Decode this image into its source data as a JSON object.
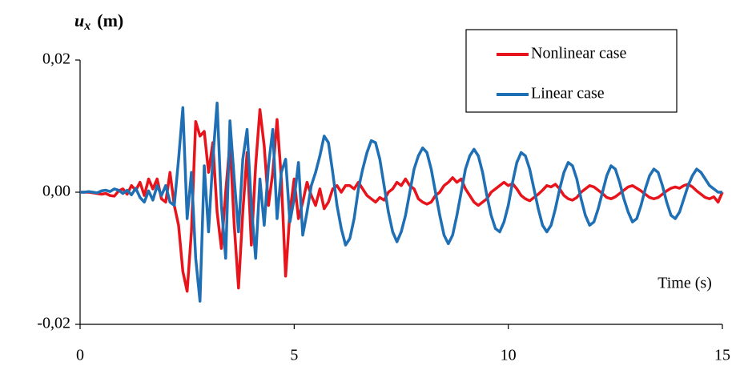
{
  "chart_data": {
    "type": "line",
    "ylabel": {
      "symbol": "u",
      "subscript": "x",
      "unit": "(m)"
    },
    "xlabel": "Time (s)",
    "xlim": [
      0,
      15
    ],
    "xticks": [
      0,
      5,
      10,
      15
    ],
    "ylim": [
      -0.02,
      0.02
    ],
    "yticks": [
      {
        "value": -0.02,
        "label": "-0,02"
      },
      {
        "value": 0,
        "label": "0,00"
      },
      {
        "value": 0.02,
        "label": "0,02"
      }
    ],
    "grid": false,
    "legend": "upper right",
    "x": [
      0,
      0.1,
      0.2,
      0.3,
      0.4,
      0.5,
      0.6,
      0.7,
      0.8,
      0.9,
      1,
      1.1,
      1.2,
      1.3,
      1.4,
      1.5,
      1.6,
      1.7,
      1.8,
      1.9,
      2,
      2.1,
      2.2,
      2.3,
      2.4,
      2.5,
      2.6,
      2.7,
      2.8,
      2.9,
      3,
      3.1,
      3.2,
      3.3,
      3.4,
      3.5,
      3.6,
      3.7,
      3.8,
      3.9,
      4,
      4.1,
      4.2,
      4.3,
      4.4,
      4.5,
      4.6,
      4.7,
      4.8,
      4.9,
      5,
      5.1,
      5.2,
      5.3,
      5.4,
      5.5,
      5.6,
      5.7,
      5.8,
      5.9,
      6,
      6.1,
      6.2,
      6.3,
      6.4,
      6.5,
      6.6,
      6.7,
      6.8,
      6.9,
      7,
      7.1,
      7.2,
      7.3,
      7.4,
      7.5,
      7.6,
      7.7,
      7.8,
      7.9,
      8,
      8.1,
      8.2,
      8.3,
      8.4,
      8.5,
      8.6,
      8.7,
      8.8,
      8.9,
      9,
      9.1,
      9.2,
      9.3,
      9.4,
      9.5,
      9.6,
      9.7,
      9.8,
      9.9,
      10,
      10.1,
      10.2,
      10.3,
      10.4,
      10.5,
      10.6,
      10.7,
      10.8,
      10.9,
      11,
      11.1,
      11.2,
      11.3,
      11.4,
      11.5,
      11.6,
      11.7,
      11.8,
      11.9,
      12,
      12.1,
      12.2,
      12.3,
      12.4,
      12.5,
      12.6,
      12.7,
      12.8,
      12.9,
      13,
      13.1,
      13.2,
      13.3,
      13.4,
      13.5,
      13.6,
      13.7,
      13.8,
      13.9,
      14,
      14.1,
      14.2,
      14.3,
      14.4,
      14.5,
      14.6,
      14.7,
      14.8,
      14.9,
      15
    ],
    "series": [
      {
        "name": "Nonlinear case",
        "color": "#e8141b",
        "values": [
          0,
          0,
          0,
          -0.0001,
          -0.0002,
          -0.0003,
          -0.0002,
          -0.0005,
          -0.0006,
          0.0002,
          0.0005,
          -0.0003,
          0.001,
          0.0003,
          0.0015,
          -0.0005,
          0.002,
          0.0005,
          0.002,
          -0.001,
          -0.0015,
          0.003,
          -0.002,
          -0.005,
          -0.012,
          -0.015,
          -0.006,
          0.0107,
          0.0085,
          0.0092,
          0.003,
          0.0075,
          -0.003,
          -0.0085,
          0,
          0.0075,
          -0.005,
          -0.0145,
          -0.003,
          0.006,
          -0.008,
          0.004,
          0.0125,
          0.007,
          -0.002,
          0.003,
          0.011,
          0.002,
          -0.0127,
          -0.003,
          0.002,
          -0.004,
          -0.0015,
          0.0015,
          -0.0005,
          -0.002,
          0.0005,
          -0.0025,
          -0.0015,
          0.0005,
          0.001,
          0,
          0.001,
          0.001,
          0.0005,
          0.0015,
          0.0005,
          -0.0005,
          -0.001,
          -0.0015,
          -0.0008,
          -0.0012,
          0,
          0.0005,
          0.0015,
          0.001,
          0.002,
          0.001,
          0.0005,
          -0.001,
          -0.0015,
          -0.0018,
          -0.0015,
          -0.0005,
          0,
          0.001,
          0.0015,
          0.0022,
          0.0015,
          0.002,
          0.0005,
          -0.0005,
          -0.0015,
          -0.002,
          -0.0015,
          -0.001,
          0,
          0.0005,
          0.001,
          0.0015,
          0.001,
          0.0013,
          0.0005,
          -0.0005,
          -0.001,
          -0.0013,
          -0.0008,
          -0.0003,
          0.0003,
          0.001,
          0.0008,
          0.0012,
          0.0005,
          -0.0005,
          -0.001,
          -0.0012,
          -0.0008,
          0,
          0.0005,
          0.001,
          0.0008,
          0.0003,
          -0.0002,
          -0.0008,
          -0.001,
          -0.0007,
          -0.0002,
          0.0003,
          0.0008,
          0.001,
          0.0006,
          0.0002,
          -0.0003,
          -0.0008,
          -0.001,
          -0.0008,
          -0.0003,
          0.0002,
          0.0006,
          0.0008,
          0.0006,
          0.001,
          0.0012,
          0.0008,
          0.0002,
          -0.0003,
          -0.0008,
          -0.001,
          -0.0007,
          -0.0015,
          0
        ]
      },
      {
        "name": "Linear case",
        "color": "#1f6fb5",
        "values": [
          0,
          0,
          0.0001,
          0,
          -0.0001,
          0.0002,
          0.0003,
          0.0001,
          0.0005,
          0.0003,
          -0.0002,
          0.0003,
          -0.0004,
          0.0006,
          -0.0008,
          -0.0015,
          0.0002,
          -0.0012,
          0.001,
          -0.0005,
          0.001,
          -0.0015,
          -0.002,
          0.005,
          0.0128,
          -0.004,
          0.003,
          -0.01,
          -0.0165,
          0.004,
          -0.006,
          0.005,
          0.0135,
          -0.002,
          -0.01,
          0.0108,
          0.002,
          -0.006,
          0.005,
          0.0095,
          -0.002,
          -0.01,
          0.002,
          -0.005,
          0.004,
          0.0095,
          -0.004,
          0.003,
          0.005,
          -0.0045,
          -0.001,
          0.0045,
          -0.0065,
          -0.003,
          0.001,
          0.003,
          0.0055,
          0.0085,
          0.0075,
          0.003,
          -0.002,
          -0.0055,
          -0.008,
          -0.007,
          -0.004,
          0.0005,
          0.0035,
          0.006,
          0.0078,
          0.0075,
          0.005,
          0.001,
          -0.003,
          -0.006,
          -0.0075,
          -0.006,
          -0.0035,
          0,
          0.0035,
          0.0055,
          0.0067,
          0.006,
          0.0035,
          0,
          -0.0035,
          -0.0065,
          -0.0078,
          -0.0065,
          -0.0035,
          0,
          0.0035,
          0.0055,
          0.0065,
          0.0055,
          0.003,
          -0.0005,
          -0.0035,
          -0.0055,
          -0.006,
          -0.0045,
          -0.002,
          0.0015,
          0.0045,
          0.006,
          0.0055,
          0.0035,
          0.0005,
          -0.0025,
          -0.005,
          -0.006,
          -0.005,
          -0.0025,
          0.0005,
          0.003,
          0.0045,
          0.004,
          0.002,
          -0.001,
          -0.0035,
          -0.005,
          -0.0045,
          -0.0025,
          0,
          0.0025,
          0.004,
          0.0035,
          0.0015,
          -0.001,
          -0.003,
          -0.0045,
          -0.004,
          -0.002,
          0.0005,
          0.0025,
          0.0035,
          0.003,
          0.001,
          -0.0015,
          -0.0035,
          -0.004,
          -0.003,
          -0.001,
          0.001,
          0.0025,
          0.0035,
          0.003,
          0.002,
          0.001,
          0.0005,
          0,
          0
        ]
      }
    ]
  }
}
